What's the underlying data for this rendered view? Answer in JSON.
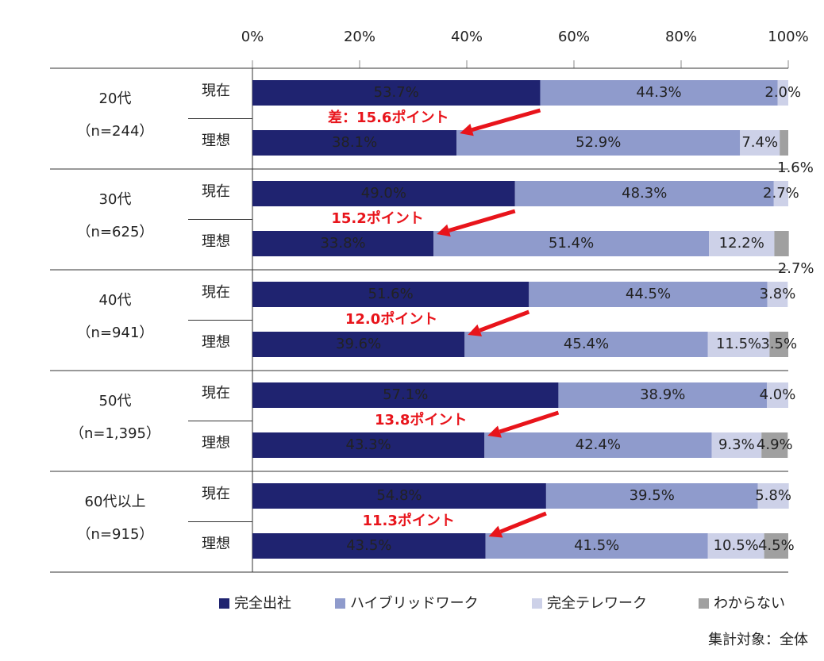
{
  "chart_data": {
    "type": "bar",
    "orientation": "horizontal",
    "stacked": true,
    "xlim": [
      0,
      100
    ],
    "xticks": [
      {
        "value": 0,
        "label": "0%"
      },
      {
        "value": 20,
        "label": "20%"
      },
      {
        "value": 40,
        "label": "40%"
      },
      {
        "value": 60,
        "label": "60%"
      },
      {
        "value": 80,
        "label": "80%"
      },
      {
        "value": 100,
        "label": "100%"
      }
    ],
    "groups": [
      {
        "name": "20代",
        "sample": "（n=244）",
        "annotation": "差：15.6ポイント"
      },
      {
        "name": "30代",
        "sample": "（n=625）",
        "annotation": "15.2ポイント"
      },
      {
        "name": "40代",
        "sample": "（n=941）",
        "annotation": "12.0ポイント"
      },
      {
        "name": "50代",
        "sample": "（n=1,395）",
        "annotation": "13.8ポイント"
      },
      {
        "name": "60代以上",
        "sample": "（n=915）",
        "annotation": "11.3ポイント"
      }
    ],
    "categories": [
      "現在",
      "理想",
      "現在",
      "理想",
      "現在",
      "理想",
      "現在",
      "理想",
      "現在",
      "理想"
    ],
    "series": [
      {
        "name": "完全出社",
        "color": "#1f2370",
        "values": [
          53.7,
          38.1,
          49.0,
          33.8,
          51.6,
          39.6,
          57.1,
          43.3,
          54.8,
          43.5
        ],
        "value_labels": [
          "53.7%",
          "38.1%",
          "49.0%",
          "33.8%",
          "51.6%",
          "39.6%",
          "57.1%",
          "43.3%",
          "54.8%",
          "43.5%"
        ]
      },
      {
        "name": "ハイブリッドワーク",
        "color": "#8f9bcc",
        "values": [
          44.3,
          52.9,
          48.3,
          51.4,
          44.5,
          45.4,
          38.9,
          42.4,
          39.5,
          41.5
        ],
        "value_labels": [
          "44.3%",
          "52.9%",
          "48.3%",
          "51.4%",
          "44.5%",
          "45.4%",
          "38.9%",
          "42.4%",
          "39.5%",
          "41.5%"
        ]
      },
      {
        "name": "完全テレワーク",
        "color": "#cdd1e8",
        "values": [
          2.0,
          7.4,
          2.7,
          12.2,
          3.8,
          11.5,
          4.0,
          9.3,
          5.8,
          10.5
        ],
        "value_labels": [
          "2.0%",
          "7.4%",
          "2.7%",
          "12.2%",
          "3.8%",
          "11.5%",
          "4.0%",
          "9.3%",
          "5.8%",
          "10.5%"
        ]
      },
      {
        "name": "わからない",
        "color": "#a0a0a0",
        "values": [
          null,
          1.6,
          null,
          2.7,
          null,
          3.5,
          null,
          4.9,
          null,
          4.5
        ],
        "value_labels": [
          null,
          "1.6%",
          null,
          "2.7%",
          null,
          "3.5%",
          null,
          "4.9%",
          null,
          "4.5%"
        ]
      }
    ],
    "note": "集計対象：全体"
  }
}
